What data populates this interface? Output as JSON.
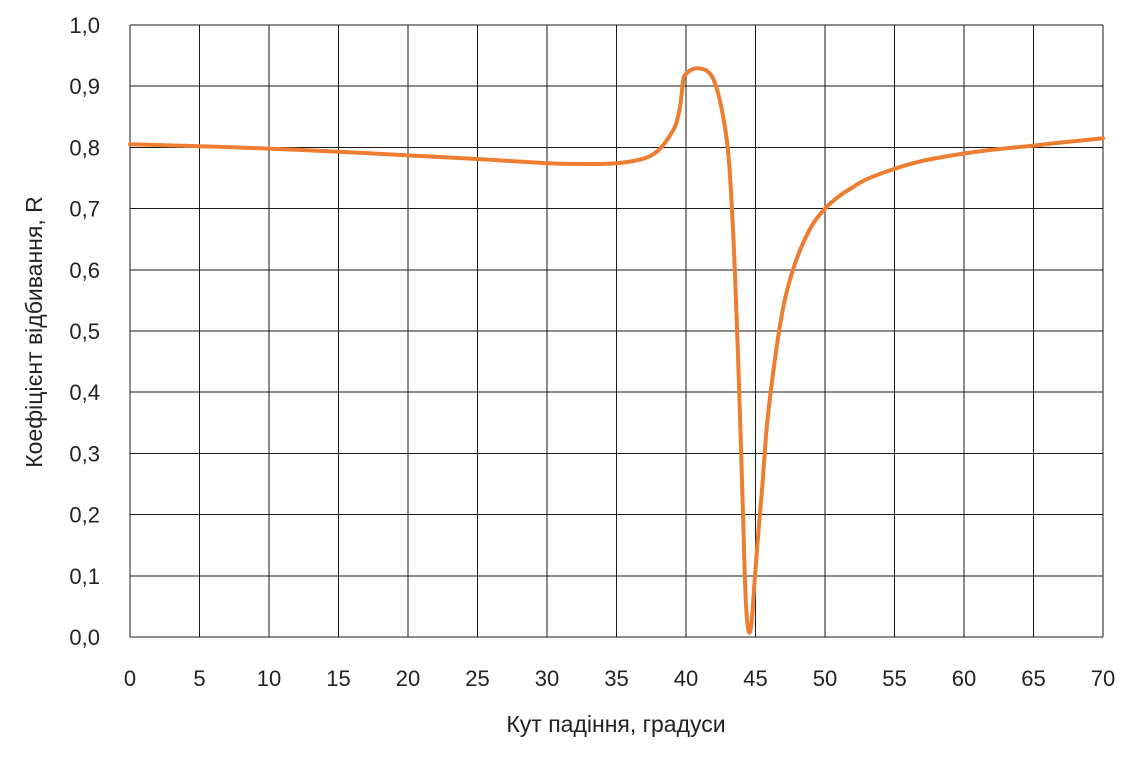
{
  "chart_data": {
    "type": "line",
    "title": "",
    "xlabel": "Кут падіння, градуси",
    "ylabel": "Коефіцієнт відбивання, R",
    "xlim": [
      0,
      70
    ],
    "ylim": [
      0,
      1.0
    ],
    "xticks": [
      "0",
      "5",
      "10",
      "15",
      "20",
      "25",
      "30",
      "35",
      "40",
      "45",
      "50",
      "55",
      "60",
      "65",
      "70"
    ],
    "yticks": [
      "0,0",
      "0,1",
      "0,2",
      "0,3",
      "0,4",
      "0,5",
      "0,6",
      "0,7",
      "0,8",
      "0,9",
      "1,0"
    ],
    "grid": true,
    "legend": "none",
    "series": [
      {
        "color": "#ED7D31",
        "x": [
          0,
          5,
          10,
          15,
          20,
          25,
          30,
          32,
          34,
          35,
          36,
          37,
          37.5,
          38,
          38.5,
          39,
          39.3,
          39.6,
          39.8,
          40,
          40.5,
          41,
          41.5,
          42,
          42.5,
          43,
          43.3,
          43.6,
          43.9,
          44.1,
          44.3,
          44.5,
          44.7,
          44.9,
          45.2,
          45.5,
          45.8,
          46.2,
          46.7,
          47.2,
          48,
          49,
          50,
          51,
          52,
          53,
          55,
          57,
          60,
          62,
          65,
          67,
          70
        ],
        "y": [
          0.805,
          0.802,
          0.798,
          0.793,
          0.787,
          0.781,
          0.774,
          0.773,
          0.773,
          0.774,
          0.777,
          0.782,
          0.787,
          0.795,
          0.808,
          0.825,
          0.84,
          0.87,
          0.91,
          0.92,
          0.928,
          0.929,
          0.925,
          0.91,
          0.87,
          0.8,
          0.7,
          0.55,
          0.35,
          0.2,
          0.06,
          0.01,
          0.02,
          0.08,
          0.17,
          0.25,
          0.34,
          0.42,
          0.5,
          0.56,
          0.62,
          0.67,
          0.7,
          0.72,
          0.735,
          0.748,
          0.765,
          0.778,
          0.79,
          0.796,
          0.803,
          0.808,
          0.815
        ]
      }
    ]
  }
}
